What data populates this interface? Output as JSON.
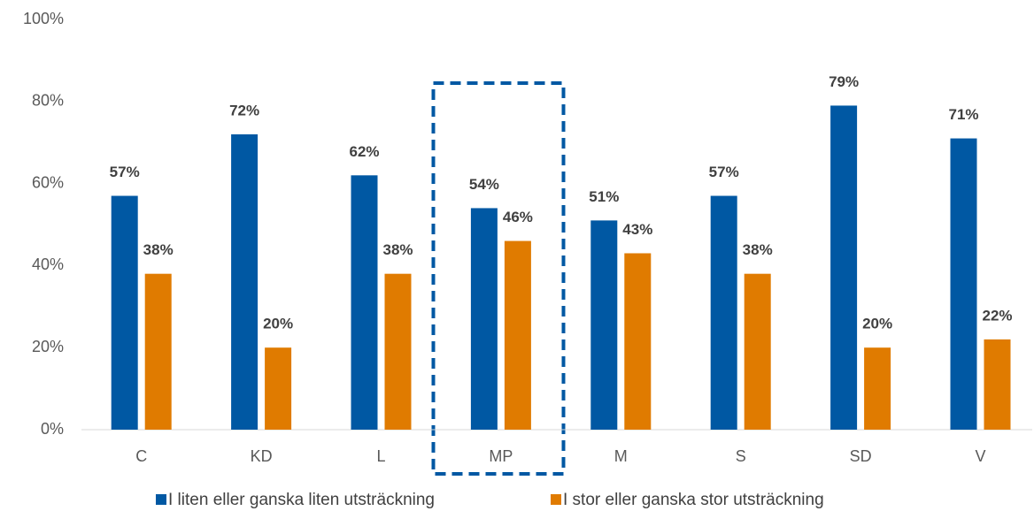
{
  "chart_data": {
    "type": "bar",
    "categories": [
      "C",
      "KD",
      "L",
      "MP",
      "M",
      "S",
      "SD",
      "V"
    ],
    "series": [
      {
        "name": "I liten eller ganska liten utsträckning",
        "color": "#0058a3",
        "values": [
          57,
          72,
          62,
          54,
          51,
          57,
          79,
          71
        ],
        "value_labels": [
          "57%",
          "72%",
          "62%",
          "54%",
          "51%",
          "57%",
          "79%",
          "71%"
        ]
      },
      {
        "name": "I stor eller ganska stor utsträckning",
        "color": "#e07b00",
        "values": [
          38,
          20,
          38,
          46,
          43,
          38,
          20,
          22
        ],
        "value_labels": [
          "38%",
          "20%",
          "38%",
          "46%",
          "43%",
          "38%",
          "20%",
          "22%"
        ]
      }
    ],
    "ylim": [
      0,
      100
    ],
    "yticks": [
      {
        "value": 0,
        "label": "0%"
      },
      {
        "value": 20,
        "label": "20%"
      },
      {
        "value": 40,
        "label": "40%"
      },
      {
        "value": 60,
        "label": "60%"
      },
      {
        "value": 80,
        "label": "80%"
      },
      {
        "value": 100,
        "label": "100%"
      }
    ],
    "grid": false,
    "legend": "bottom"
  }
}
